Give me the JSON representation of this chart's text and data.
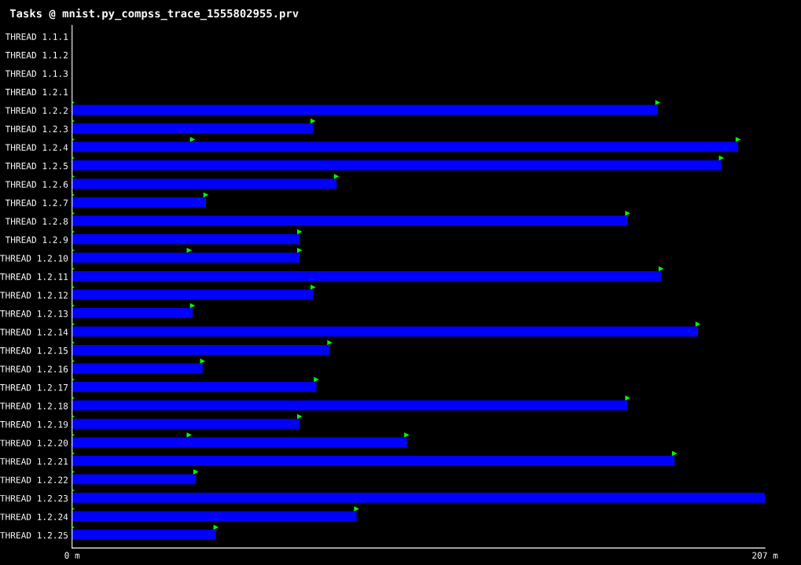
{
  "chart_data": {
    "type": "bar",
    "orientation": "horizontal",
    "title": "Tasks @ mnist.py_compss_trace_1555802955.prv",
    "categories": [
      "THREAD 1.1.1",
      "THREAD 1.1.2",
      "THREAD 1.1.3",
      "THREAD 1.2.1",
      "THREAD 1.2.2",
      "THREAD 1.2.3",
      "THREAD 1.2.4",
      "THREAD 1.2.5",
      "THREAD 1.2.6",
      "THREAD 1.2.7",
      "THREAD 1.2.8",
      "THREAD 1.2.9",
      "THREAD 1.2.10",
      "THREAD 1.2.11",
      "THREAD 1.2.12",
      "THREAD 1.2.13",
      "THREAD 1.2.14",
      "THREAD 1.2.15",
      "THREAD 1.2.16",
      "THREAD 1.2.17",
      "THREAD 1.2.18",
      "THREAD 1.2.19",
      "THREAD 1.2.20",
      "THREAD 1.2.21",
      "THREAD 1.2.22",
      "THREAD 1.2.23",
      "THREAD 1.2.24",
      "THREAD 1.2.25"
    ],
    "series": [
      {
        "color": "#0000ff",
        "values": [
          null,
          null,
          null,
          null,
          175,
          72,
          199,
          194,
          79,
          40,
          166,
          68,
          68,
          176,
          72,
          36,
          187,
          77,
          39,
          73,
          166,
          68,
          100,
          180,
          37,
          207,
          85,
          43
        ]
      },
      {
        "type": "scatter",
        "color": "#00ff00",
        "marker": "triangle",
        "x": [
          "THREAD 1.2.2",
          "THREAD 1.2.2",
          "THREAD 1.2.3",
          "THREAD 1.2.3",
          "THREAD 1.2.4",
          "THREAD 1.2.4",
          "THREAD 1.2.4",
          "THREAD 1.2.5",
          "THREAD 1.2.5",
          "THREAD 1.2.6",
          "THREAD 1.2.6",
          "THREAD 1.2.7",
          "THREAD 1.2.7",
          "THREAD 1.2.8",
          "THREAD 1.2.8",
          "THREAD 1.2.9",
          "THREAD 1.2.9",
          "THREAD 1.2.10",
          "THREAD 1.2.10",
          "THREAD 1.2.10",
          "THREAD 1.2.11",
          "THREAD 1.2.11",
          "THREAD 1.2.12",
          "THREAD 1.2.12",
          "THREAD 1.2.13",
          "THREAD 1.2.13",
          "THREAD 1.2.14",
          "THREAD 1.2.14",
          "THREAD 1.2.15",
          "THREAD 1.2.15",
          "THREAD 1.2.16",
          "THREAD 1.2.16",
          "THREAD 1.2.17",
          "THREAD 1.2.17",
          "THREAD 1.2.18",
          "THREAD 1.2.18",
          "THREAD 1.2.19",
          "THREAD 1.2.19",
          "THREAD 1.2.20",
          "THREAD 1.2.20",
          "THREAD 1.2.20",
          "THREAD 1.2.21",
          "THREAD 1.2.21",
          "THREAD 1.2.22",
          "THREAD 1.2.22",
          "THREAD 1.2.23",
          "THREAD 1.2.24",
          "THREAD 1.2.24",
          "THREAD 1.2.25",
          "THREAD 1.2.25"
        ],
        "values": [
          0,
          175,
          0,
          72,
          0,
          36,
          199,
          0,
          194,
          0,
          79,
          0,
          40,
          0,
          166,
          0,
          68,
          0,
          35,
          68,
          0,
          176,
          0,
          72,
          0,
          36,
          0,
          187,
          0,
          77,
          0,
          39,
          0,
          73,
          0,
          166,
          0,
          68,
          0,
          35,
          100,
          0,
          180,
          0,
          37,
          0,
          0,
          85,
          0,
          43
        ]
      }
    ],
    "xlim": [
      0,
      207
    ],
    "xticks": [
      {
        "value": 0,
        "label": "0 m"
      },
      {
        "value": 207,
        "label": "207 m"
      }
    ],
    "grid": false,
    "legend": false
  }
}
